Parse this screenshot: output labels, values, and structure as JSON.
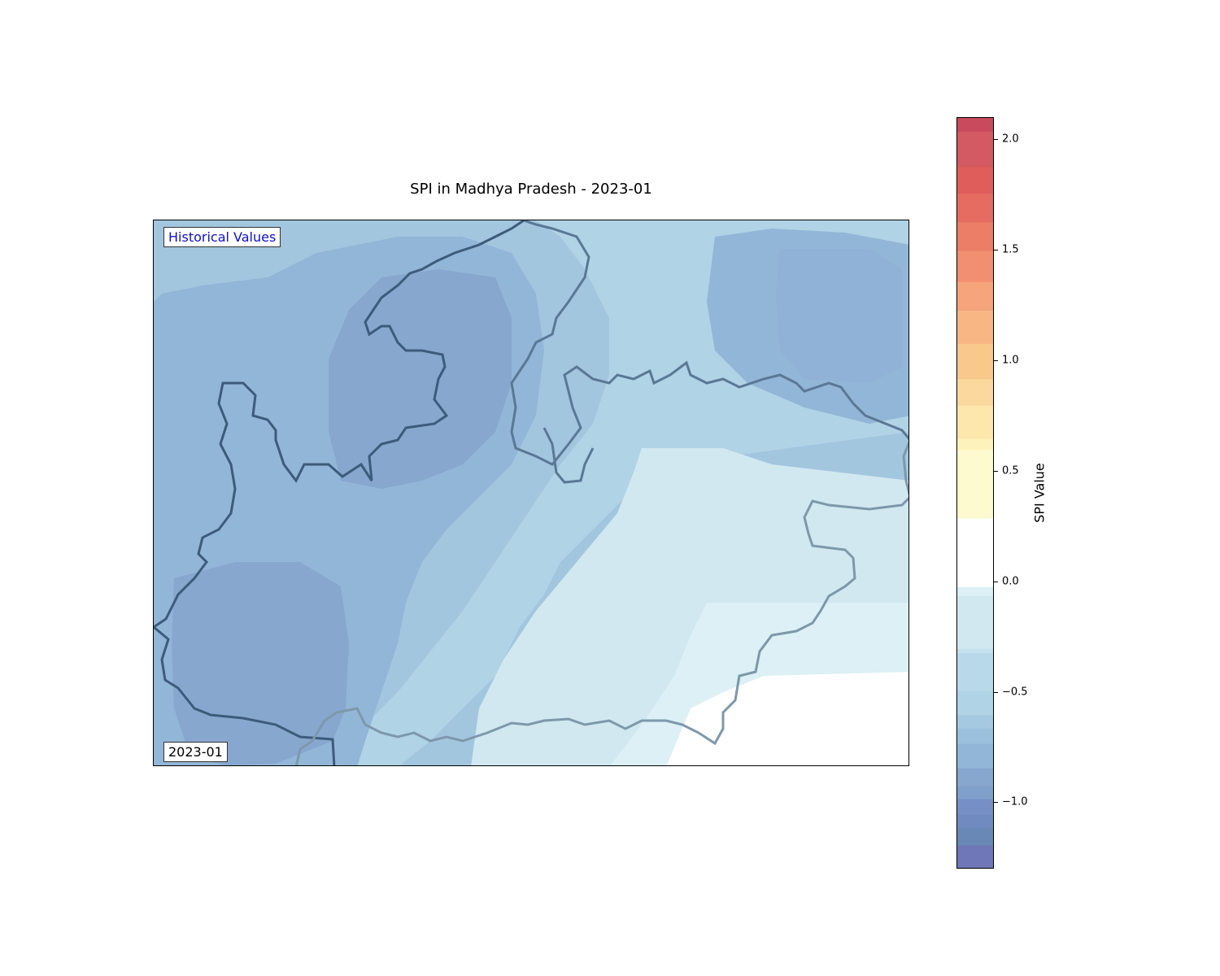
{
  "title": "SPI in Madhya Pradesh - 2023-01",
  "mode_label": "Historical Values",
  "date_label": "2023-01",
  "colorbar": {
    "label": "SPI Value",
    "min": -1.3,
    "max": 2.1,
    "ticks": [
      -1.0,
      -0.5,
      0.0,
      0.5,
      1.0,
      1.5,
      2.0
    ],
    "tick_labels": [
      "−1.0",
      "−0.5",
      "0.0",
      "0.5",
      "1.0",
      "1.5",
      "2.0"
    ],
    "bands": [
      {
        "from": -1.3,
        "to": -1.19,
        "color": "#6f77b8"
      },
      {
        "from": -1.19,
        "to": -1.11,
        "color": "#6a88b5"
      },
      {
        "from": -1.11,
        "to": -1.05,
        "color": "#6f8bc0"
      },
      {
        "from": -1.05,
        "to": -0.98,
        "color": "#7690c6"
      },
      {
        "from": -0.98,
        "to": -0.92,
        "color": "#80a0cc"
      },
      {
        "from": -0.92,
        "to": -0.84,
        "color": "#87a7cf"
      },
      {
        "from": -0.84,
        "to": -0.73,
        "color": "#92b6d7"
      },
      {
        "from": -0.73,
        "to": -0.66,
        "color": "#9bc0dd"
      },
      {
        "from": -0.66,
        "to": -0.6,
        "color": "#a5c9e1"
      },
      {
        "from": -0.6,
        "to": -0.49,
        "color": "#b0d3e6"
      },
      {
        "from": -0.49,
        "to": -0.32,
        "color": "#b8d9e9"
      },
      {
        "from": -0.32,
        "to": -0.3,
        "color": "#c4e1ed"
      },
      {
        "from": -0.3,
        "to": -0.06,
        "color": "#d1e8f0"
      },
      {
        "from": -0.06,
        "to": -0.02,
        "color": "#dcf0f5"
      },
      {
        "from": -0.02,
        "to": 0.29,
        "color": "#ffffff"
      },
      {
        "from": 0.29,
        "to": 0.6,
        "color": "#fefad0"
      },
      {
        "from": 0.6,
        "to": 0.65,
        "color": "#fef2bc"
      },
      {
        "from": 0.65,
        "to": 0.8,
        "color": "#fde7ac"
      },
      {
        "from": 0.8,
        "to": 0.92,
        "color": "#fbd99e"
      },
      {
        "from": 0.92,
        "to": 1.08,
        "color": "#f9c98c"
      },
      {
        "from": 1.08,
        "to": 1.23,
        "color": "#f7b684"
      },
      {
        "from": 1.23,
        "to": 1.36,
        "color": "#f5a47b"
      },
      {
        "from": 1.36,
        "to": 1.5,
        "color": "#f28f70"
      },
      {
        "from": 1.5,
        "to": 1.63,
        "color": "#ec7d67"
      },
      {
        "from": 1.63,
        "to": 1.76,
        "color": "#e66b60"
      },
      {
        "from": 1.76,
        "to": 1.88,
        "color": "#df5e5c"
      },
      {
        "from": 1.88,
        "to": 2.04,
        "color": "#d35a62"
      },
      {
        "from": 2.04,
        "to": 2.1,
        "color": "#c84a5c"
      }
    ]
  },
  "map_layers": {
    "field_colors": [
      "#a3c6df",
      "#92b6d7",
      "#87a7cf",
      "#b0d3e6",
      "#d1e8f0",
      "#dcf0f5",
      "#ffffff"
    ],
    "boundary_colors": [
      "#3d5b7a",
      "#5a7895",
      "#7d98aa"
    ]
  }
}
